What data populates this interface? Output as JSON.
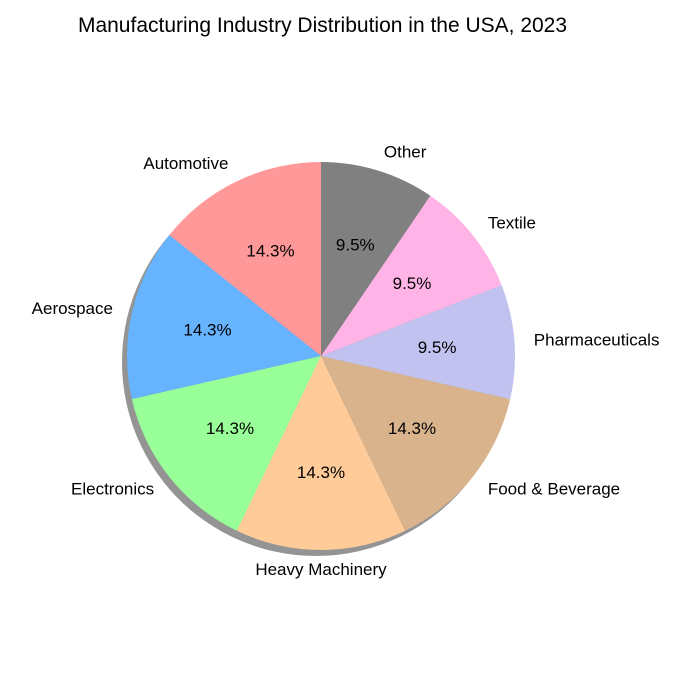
{
  "chart_data": {
    "type": "pie",
    "title": "Manufacturing Industry Distribution in the USA, 2023",
    "categories": [
      "Automotive",
      "Aerospace",
      "Electronics",
      "Heavy Machinery",
      "Food & Beverage",
      "Pharmaceuticals",
      "Textile",
      "Other"
    ],
    "values": [
      15,
      15,
      15,
      15,
      15,
      10,
      10,
      10
    ],
    "percent_labels": [
      "14.3%",
      "14.3%",
      "14.3%",
      "14.3%",
      "14.3%",
      "9.5%",
      "9.5%",
      "9.5%"
    ],
    "colors": [
      "#ff9999",
      "#66b3ff",
      "#99ff99",
      "#ffcc99",
      "#d9b38c",
      "#c2c2f0",
      "#ffb3e6",
      "#808080"
    ],
    "start_angle_deg": 90,
    "direction": "counterclockwise",
    "shadow": true,
    "legend": "none"
  }
}
